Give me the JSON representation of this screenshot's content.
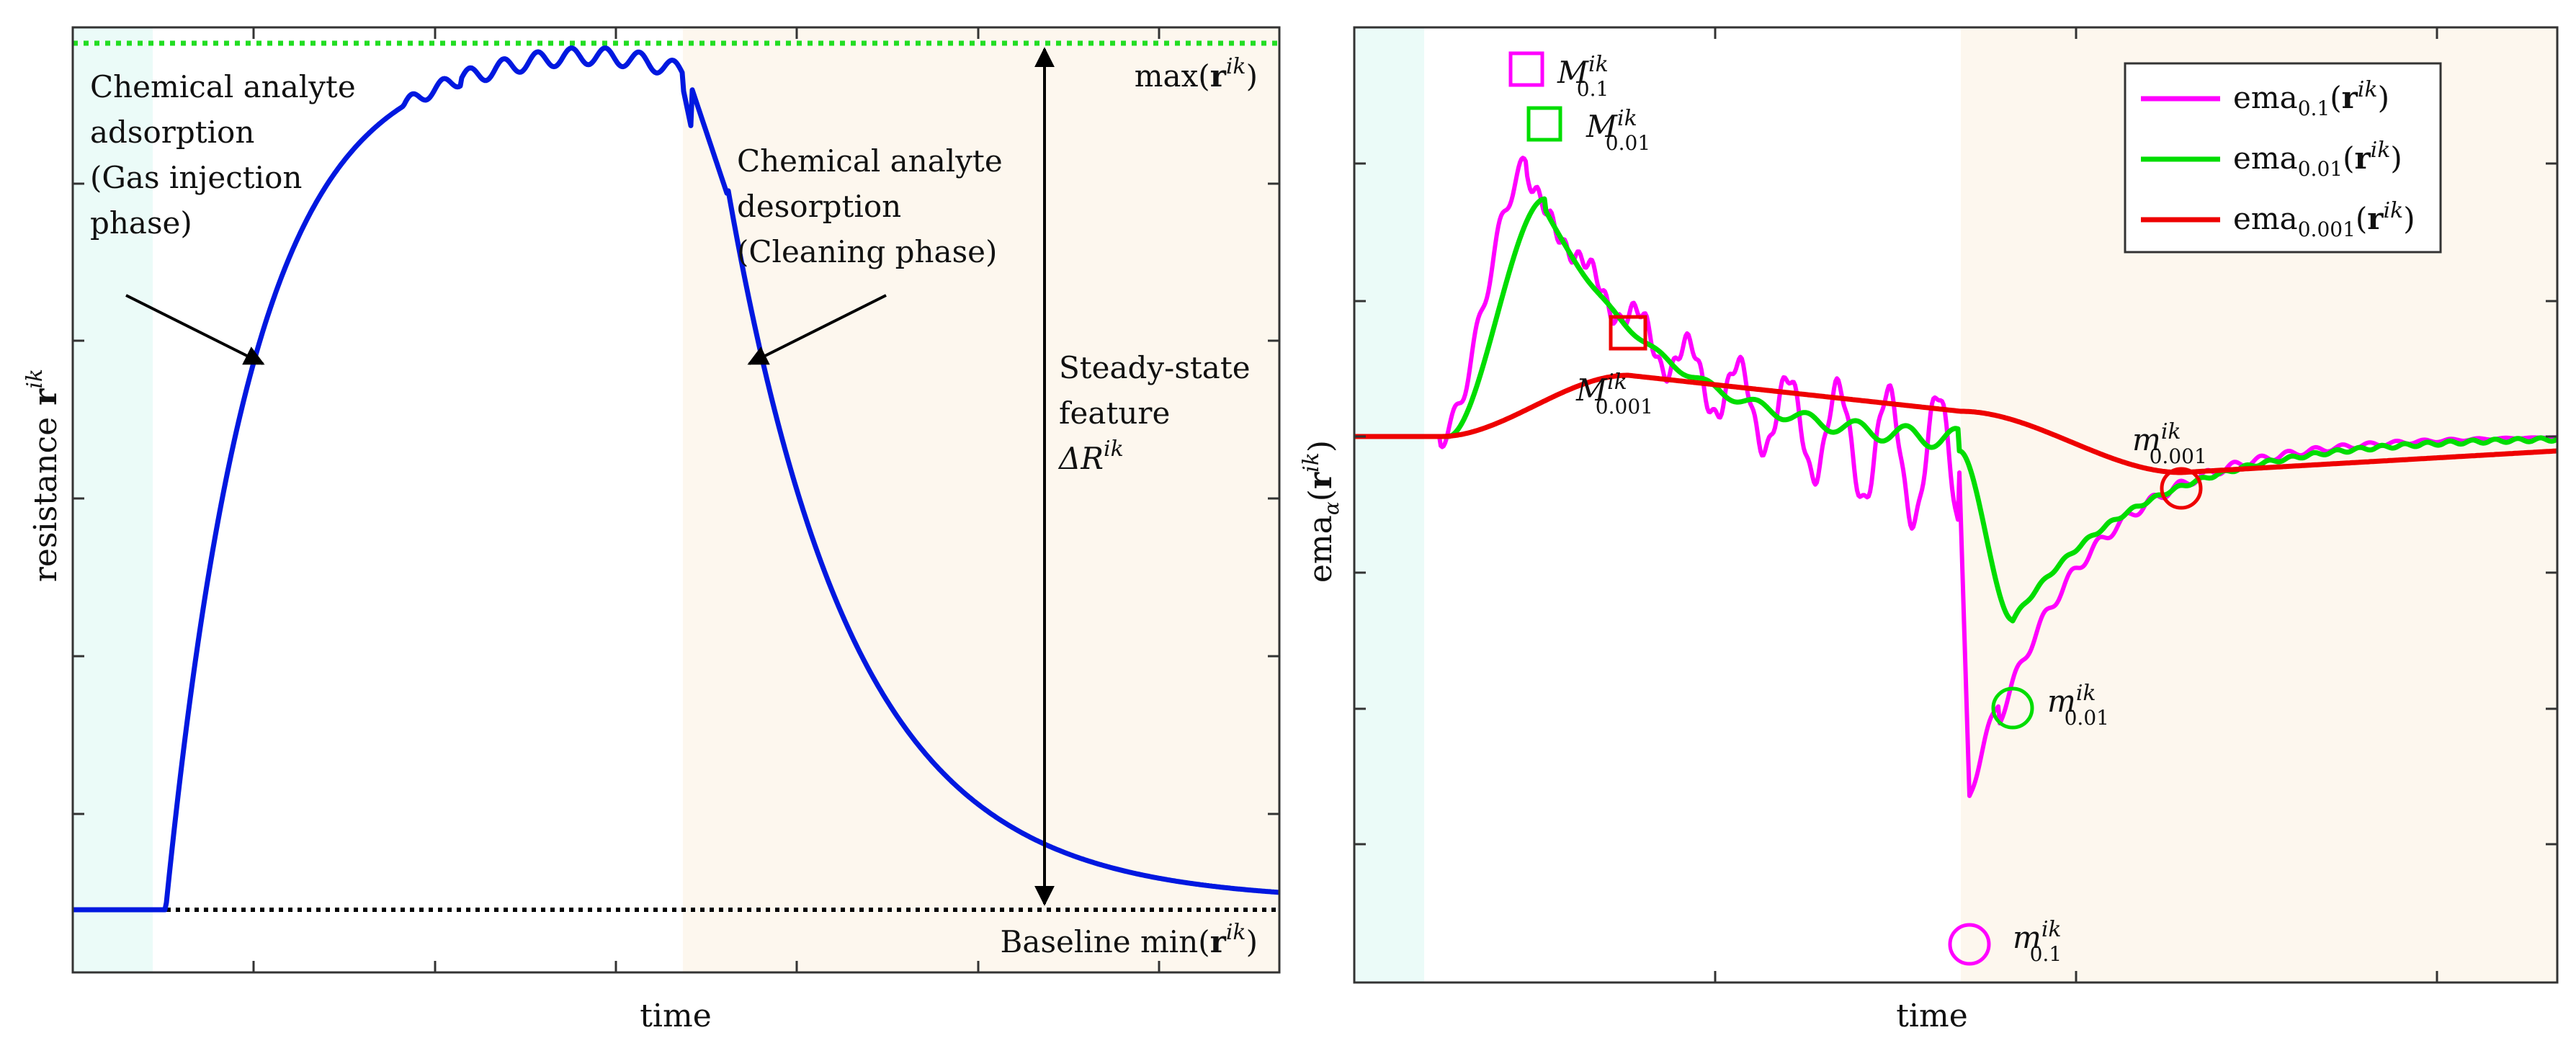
{
  "figure": {
    "left": {
      "xlabel": "time",
      "ylabel_main": "resistance",
      "ylabel_bold": "r",
      "ylabel_sup": "ik",
      "annotations": {
        "adsorption": [
          "Chemical analyte",
          "adsorption",
          "(Gas injection",
          "phase)"
        ],
        "desorption": [
          "Chemical analyte",
          "desorption",
          "(Cleaning phase)"
        ],
        "steady_state": [
          "Steady-state",
          "feature"
        ],
        "delta": {
          "main": "ΔR",
          "sup": "ik"
        },
        "max_label": {
          "prefix": "max(",
          "bold": "r",
          "sup": "ik",
          "suffix": ")"
        },
        "min_label": {
          "prefix": "Baseline min(",
          "bold": "r",
          "sup": "ik",
          "suffix": ")"
        }
      }
    },
    "right": {
      "xlabel": "time",
      "ylabel": {
        "main": "ema",
        "sub": "α",
        "paren_open": "(",
        "bold": "r",
        "sup": "ik",
        "paren_close": ")"
      },
      "legend": [
        {
          "main": "ema",
          "sub": "0.1",
          "bold": "r",
          "sup": "ik",
          "color": "#ff00ff"
        },
        {
          "main": "ema",
          "sub": "0.01",
          "bold": "r",
          "sup": "ik",
          "color": "#00dd00"
        },
        {
          "main": "ema",
          "sub": "0.001",
          "bold": "r",
          "sup": "ik",
          "color": "#ee0000"
        }
      ],
      "markers": {
        "M01": {
          "main": "M",
          "sup": "ik",
          "sub": "0.1"
        },
        "M001": {
          "main": "M",
          "sup": "ik",
          "sub": "0.01"
        },
        "M0001": {
          "main": "M",
          "sup": "ik",
          "sub": "0.001"
        },
        "m01": {
          "main": "m",
          "sup": "ik",
          "sub": "0.1"
        },
        "m001": {
          "main": "m",
          "sup": "ik",
          "sub": "0.01"
        },
        "m0001": {
          "main": "m",
          "sup": "ik",
          "sub": "0.001"
        }
      }
    }
  },
  "chart_data": [
    {
      "type": "line",
      "xlabel": "time",
      "ylabel": "resistance r^ik",
      "grid": false,
      "phases": [
        "baseline",
        "gas injection",
        "cleaning"
      ],
      "series": [
        {
          "values": [
            0,
            0,
            0.01,
            0.2,
            0.45,
            0.65,
            0.8,
            0.9,
            0.95,
            0.97,
            0.98,
            0.99,
            1.0,
            0.99,
            0.98,
            0.97,
            0.95,
            0.75,
            0.52,
            0.35,
            0.24,
            0.17,
            0.12,
            0.09,
            0.07,
            0.06,
            0.05,
            0.04,
            0.03,
            0.02,
            0.01
          ]
        }
      ],
      "reference_lines": [
        "max(r^ik)",
        "Baseline min(r^ik)"
      ],
      "annotations": [
        "Chemical analyte adsorption (Gas injection phase)",
        "Chemical analyte desorption (Cleaning phase)",
        "Steady-state feature ΔR^ik"
      ]
    },
    {
      "type": "line",
      "xlabel": "time",
      "ylabel": "ema_α(r^ik)",
      "grid": false,
      "legend_position": "top-right",
      "phases": [
        "baseline",
        "gas injection",
        "cleaning"
      ],
      "series": [
        {
          "name": "ema_0.1(r^ik)",
          "color": "#ff00ff",
          "values": [
            0,
            0,
            0,
            0.3,
            0.55,
            0.72,
            0.62,
            0.45,
            0.28,
            0.18,
            0.05,
            -0.1,
            -0.05,
            -0.15,
            -0.1,
            -0.05,
            -0.1,
            -1.0,
            -0.55,
            -0.4,
            -0.25,
            -0.15,
            -0.08,
            -0.04,
            -0.02,
            0.0,
            0.0,
            0.0
          ]
        },
        {
          "name": "ema_0.01(r^ik)",
          "color": "#00dd00",
          "values": [
            0,
            0,
            0,
            0.12,
            0.45,
            0.65,
            0.55,
            0.38,
            0.22,
            0.1,
            0.05,
            0.0,
            -0.02,
            -0.04,
            -0.04,
            -0.05,
            -0.05,
            -0.15,
            -0.5,
            -0.42,
            -0.3,
            -0.2,
            -0.12,
            -0.07,
            -0.04,
            -0.02,
            0.0,
            0.0
          ]
        },
        {
          "name": "ema_0.001(r^ik)",
          "color": "#ee0000",
          "values": [
            0,
            0,
            0,
            0.03,
            0.1,
            0.15,
            0.18,
            0.19,
            0.18,
            0.17,
            0.16,
            0.14,
            0.12,
            0.1,
            0.08,
            0.07,
            0.06,
            0.03,
            -0.05,
            -0.09,
            -0.11,
            -0.12,
            -0.12,
            -0.11,
            -0.1,
            -0.09,
            -0.08,
            -0.07
          ]
        }
      ],
      "markers": [
        "M_0.1^ik",
        "M_0.01^ik",
        "M_0.001^ik",
        "m_0.1^ik",
        "m_0.01^ik",
        "m_0.001^ik"
      ]
    }
  ]
}
